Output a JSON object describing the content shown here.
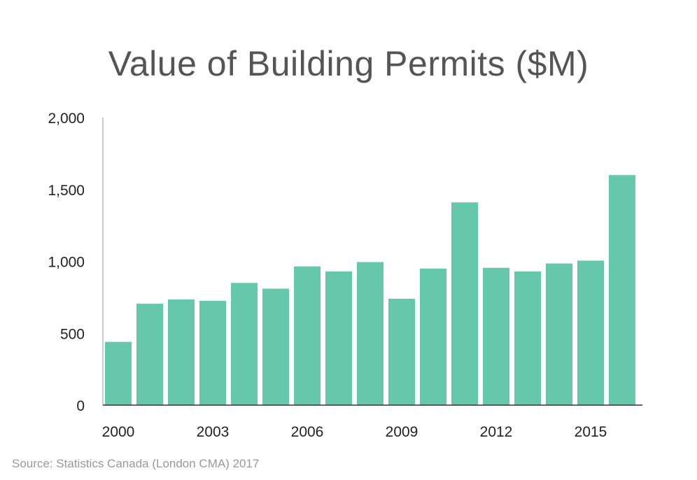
{
  "chart_data": {
    "type": "bar",
    "title": "Value of Building Permits ($M)",
    "categories": [
      "2000",
      "2001",
      "2002",
      "2003",
      "2004",
      "2005",
      "2006",
      "2007",
      "2008",
      "2009",
      "2010",
      "2011",
      "2012",
      "2013",
      "2014",
      "2015",
      "2016"
    ],
    "values": [
      440,
      705,
      735,
      725,
      850,
      810,
      965,
      930,
      995,
      740,
      950,
      1410,
      955,
      930,
      985,
      1005,
      1600
    ],
    "x_tick_labels": [
      "2000",
      "2003",
      "2006",
      "2009",
      "2012",
      "2015"
    ],
    "y_ticks": [
      "0",
      "500",
      "1,000",
      "1,500",
      "2,000"
    ],
    "ylim": [
      0,
      2000
    ],
    "xlabel": "",
    "ylabel": "",
    "grid": false,
    "bar_color": "#66c8ab"
  },
  "source": "Source: Statistics Canada (London CMA) 2017"
}
